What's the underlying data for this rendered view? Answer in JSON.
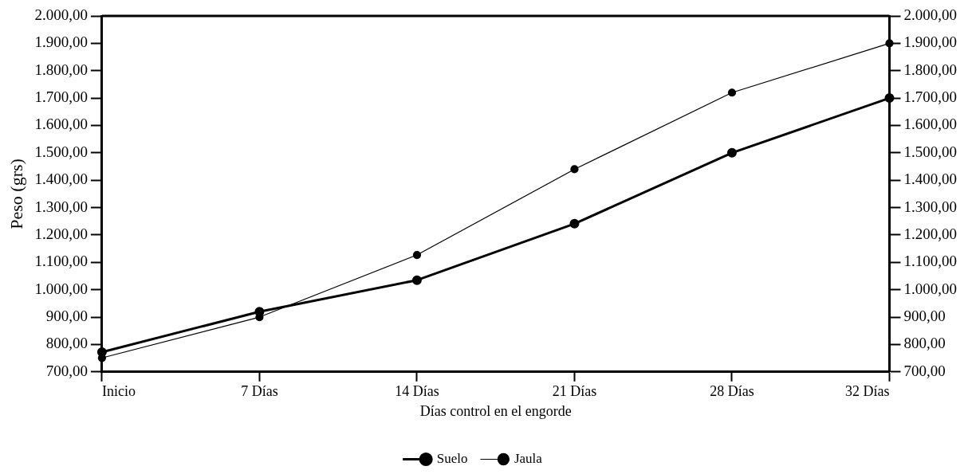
{
  "chart_data": {
    "type": "line",
    "xlabel": "Días control en el engorde",
    "ylabel": "Peso (grs)",
    "categories": [
      "Inicio",
      "7 Días",
      "14 Días",
      "21 Días",
      "28 Días",
      "32 Días"
    ],
    "series": [
      {
        "name": "Suelo",
        "color": "#000000",
        "values": [
          772,
          920,
          1035,
          1241,
          1500,
          1700
        ]
      },
      {
        "name": "Jaula",
        "color": "#000000",
        "values": [
          751,
          900,
          1127,
          1440,
          1720,
          1900
        ]
      }
    ],
    "ylim": [
      700,
      2000
    ],
    "yticks": [
      {
        "value": 700,
        "label": "700,00"
      },
      {
        "value": 800,
        "label": "800,00"
      },
      {
        "value": 900,
        "label": "900,00"
      },
      {
        "value": 1000,
        "label": "1.000,00"
      },
      {
        "value": 1100,
        "label": "1.100,00"
      },
      {
        "value": 1200,
        "label": "1.200,00"
      },
      {
        "value": 1300,
        "label": "1.300,00"
      },
      {
        "value": 1400,
        "label": "1.400,00"
      },
      {
        "value": 1500,
        "label": "1.500,00"
      },
      {
        "value": 1600,
        "label": "1.600,00"
      },
      {
        "value": 1700,
        "label": "1.700,00"
      },
      {
        "value": 1800,
        "label": "1.800,00"
      },
      {
        "value": 1900,
        "label": "1.900,00"
      },
      {
        "value": 2000,
        "label": "2.000,00"
      }
    ],
    "y2lim": [
      700,
      2000
    ],
    "y2ticks": [
      {
        "value": 700,
        "label": "700,00"
      },
      {
        "value": 800,
        "label": "800,00"
      },
      {
        "value": 900,
        "label": "900,00"
      },
      {
        "value": 1000,
        "label": "1.000,00"
      },
      {
        "value": 1100,
        "label": "1.100,00"
      },
      {
        "value": 1200,
        "label": "1.200,00"
      },
      {
        "value": 1300,
        "label": "1.300,00"
      },
      {
        "value": 1400,
        "label": "1.400,00"
      },
      {
        "value": 1500,
        "label": "1.500,00"
      },
      {
        "value": 1600,
        "label": "1.600,00"
      },
      {
        "value": 1700,
        "label": "1.700,00"
      },
      {
        "value": 1800,
        "label": "1.800,00"
      },
      {
        "value": 1900,
        "label": "1.900,00"
      },
      {
        "value": 2000,
        "label": "2.000,00"
      }
    ],
    "grid": false,
    "legend": "bottom",
    "marker": "circle",
    "line_style": "solid"
  }
}
